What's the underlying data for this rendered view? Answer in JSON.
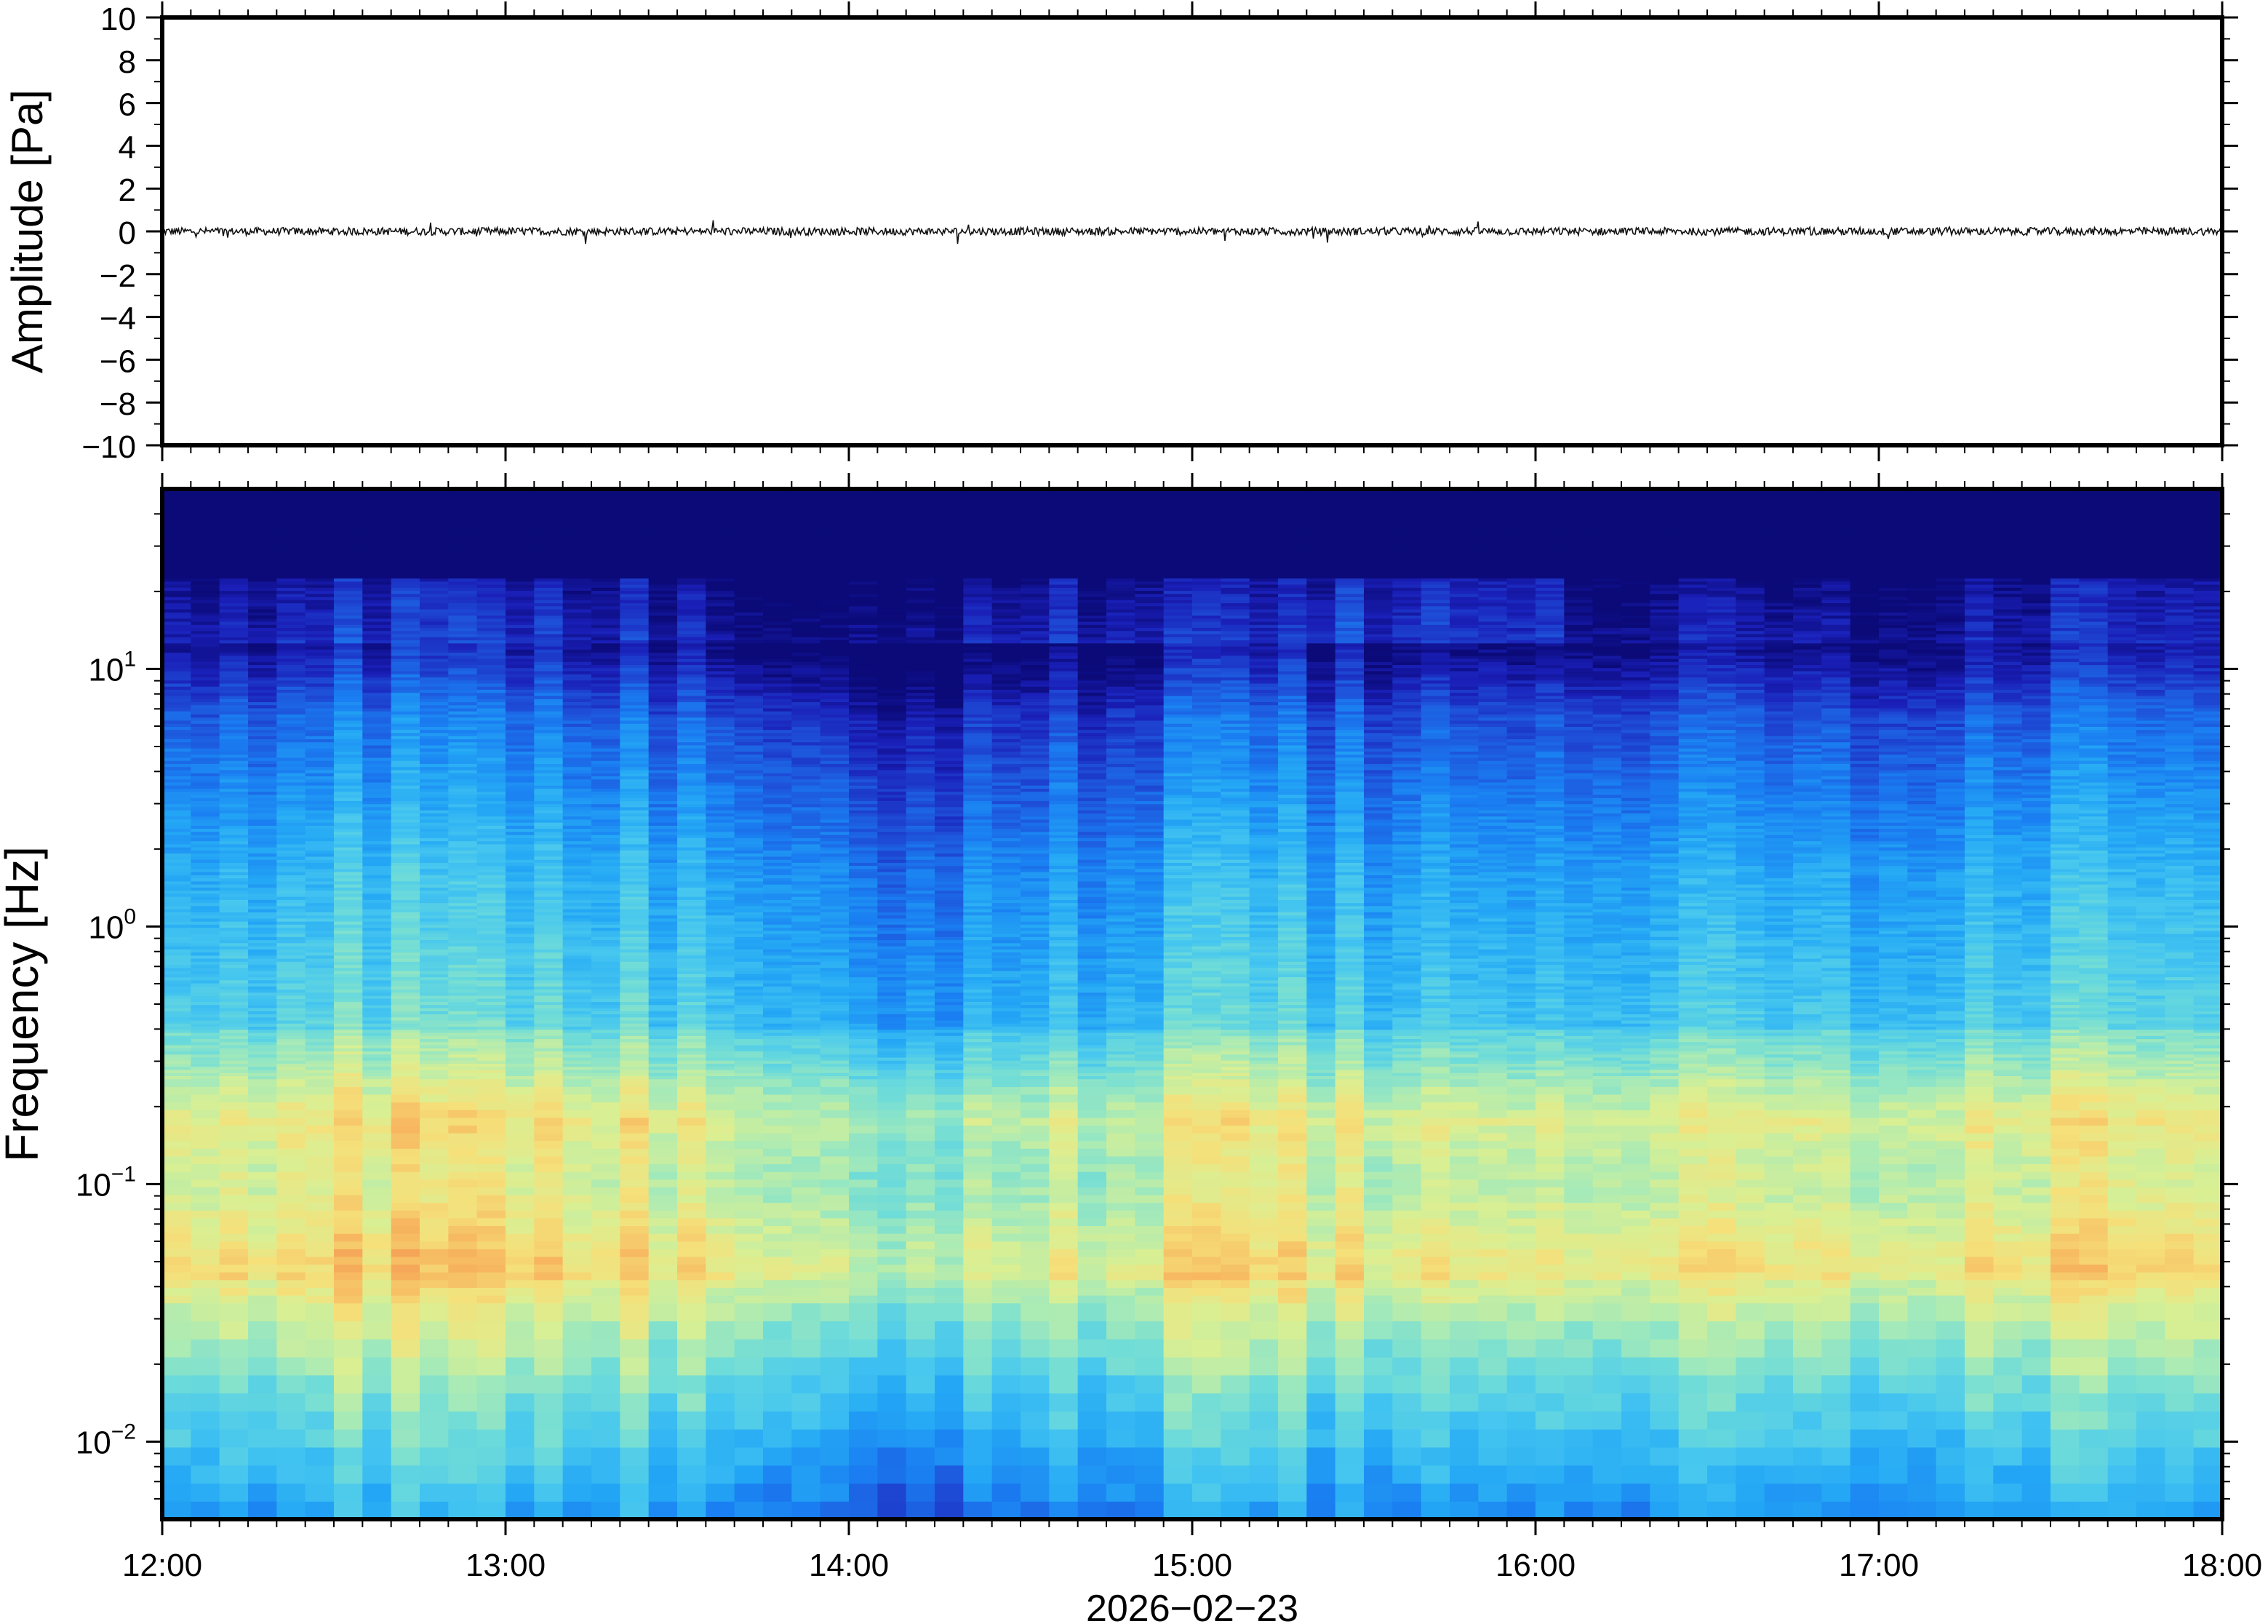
{
  "figure": {
    "date_label": "2026−02−23"
  },
  "chart_data": [
    {
      "type": "line",
      "panel": "waveform",
      "ylabel": "Amplitude [Pa]",
      "ylim": [
        -10,
        10
      ],
      "yticks": [
        10,
        8,
        6,
        4,
        2,
        0,
        -2,
        -4,
        -6,
        -8,
        -10
      ],
      "ytick_labels": [
        "10",
        "8",
        "6",
        "4",
        "2",
        "0",
        "−2",
        "−4",
        "−6",
        "−8",
        "−10"
      ],
      "xlim": [
        "12:00",
        "18:00"
      ],
      "series": [
        {
          "values_description_hidden": "",
          "x_start": "12:00",
          "x_end": "18:00",
          "baseline": 0,
          "typical_peak_abs": 0.3,
          "max_peak_abs": 0.6
        }
      ],
      "grid": false
    },
    {
      "type": "heatmap",
      "panel": "spectrogram",
      "ylabel": "Frequency [Hz]",
      "yscale": "log",
      "ylim": [
        0.005,
        50
      ],
      "yticks": [
        0.01,
        0.1,
        1,
        10
      ],
      "ytick_labels": [
        {
          "base": "10",
          "exp": "−2"
        },
        {
          "base": "10",
          "exp": "−1"
        },
        {
          "base": "10",
          "exp": "0"
        },
        {
          "base": "10",
          "exp": "1"
        }
      ],
      "xlim": [
        "12:00",
        "18:00"
      ],
      "xticks": [
        "12:00",
        "13:00",
        "14:00",
        "15:00",
        "16:00",
        "17:00",
        "18:00"
      ],
      "colormap": [
        "#0b0a78",
        "#1a1fb8",
        "#1e4fd8",
        "#1a7ff2",
        "#24a8f5",
        "#45c6f0",
        "#6fdcd8",
        "#a6eab8",
        "#d9ef93",
        "#f5e07a",
        "#f7b860",
        "#f2904e"
      ],
      "grid": false
    }
  ]
}
